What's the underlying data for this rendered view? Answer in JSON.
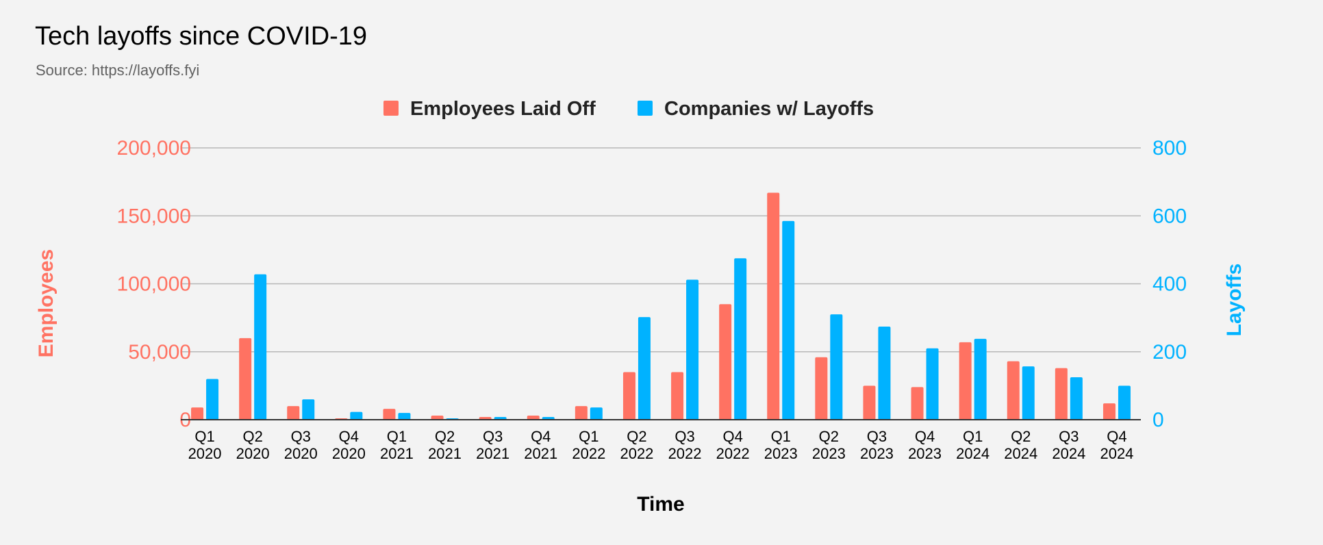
{
  "title": "Tech layoffs since COVID-19",
  "subtitle": "Source: https://layoffs.fyi",
  "colors": {
    "employees": "#ff7262",
    "companies": "#00b2ff",
    "grid": "#b7b7b7",
    "axis": "#333333"
  },
  "chart_data": {
    "type": "bar",
    "title": "Tech layoffs since COVID-19",
    "subtitle": "Source: https://layoffs.fyi",
    "xlabel": "Time",
    "ylabel": "Employees",
    "y2label": "Layoffs",
    "categories": [
      [
        "Q1",
        "2020"
      ],
      [
        "Q2",
        "2020"
      ],
      [
        "Q3",
        "2020"
      ],
      [
        "Q4",
        "2020"
      ],
      [
        "Q1",
        "2021"
      ],
      [
        "Q2",
        "2021"
      ],
      [
        "Q3",
        "2021"
      ],
      [
        "Q4",
        "2021"
      ],
      [
        "Q1",
        "2022"
      ],
      [
        "Q2",
        "2022"
      ],
      [
        "Q3",
        "2022"
      ],
      [
        "Q4",
        "2022"
      ],
      [
        "Q1",
        "2023"
      ],
      [
        "Q2",
        "2023"
      ],
      [
        "Q3",
        "2023"
      ],
      [
        "Q4",
        "2023"
      ],
      [
        "Q1",
        "2024"
      ],
      [
        "Q2",
        "2024"
      ],
      [
        "Q3",
        "2024"
      ],
      [
        "Q4",
        "2024"
      ]
    ],
    "ylim": [
      0,
      200000
    ],
    "y2lim": [
      0,
      800
    ],
    "yticks": [
      "200,000",
      "150,000",
      "100,000",
      "50,000",
      "0"
    ],
    "y2ticks": [
      "800",
      "600",
      "400",
      "200",
      "0"
    ],
    "legend_position": "top",
    "grid": true,
    "series": [
      {
        "name": "Employees Laid Off",
        "axis": "left",
        "values": [
          9000,
          60000,
          10000,
          1000,
          8000,
          3000,
          2000,
          3000,
          10000,
          35000,
          35000,
          85000,
          167000,
          46000,
          25000,
          24000,
          57000,
          43000,
          38000,
          12000
        ]
      },
      {
        "name": "Companies w/ Layoffs",
        "axis": "right",
        "values": [
          120,
          428,
          60,
          23,
          20,
          4,
          8,
          8,
          36,
          302,
          412,
          475,
          585,
          310,
          274,
          210,
          238,
          157,
          125,
          100
        ]
      }
    ]
  }
}
